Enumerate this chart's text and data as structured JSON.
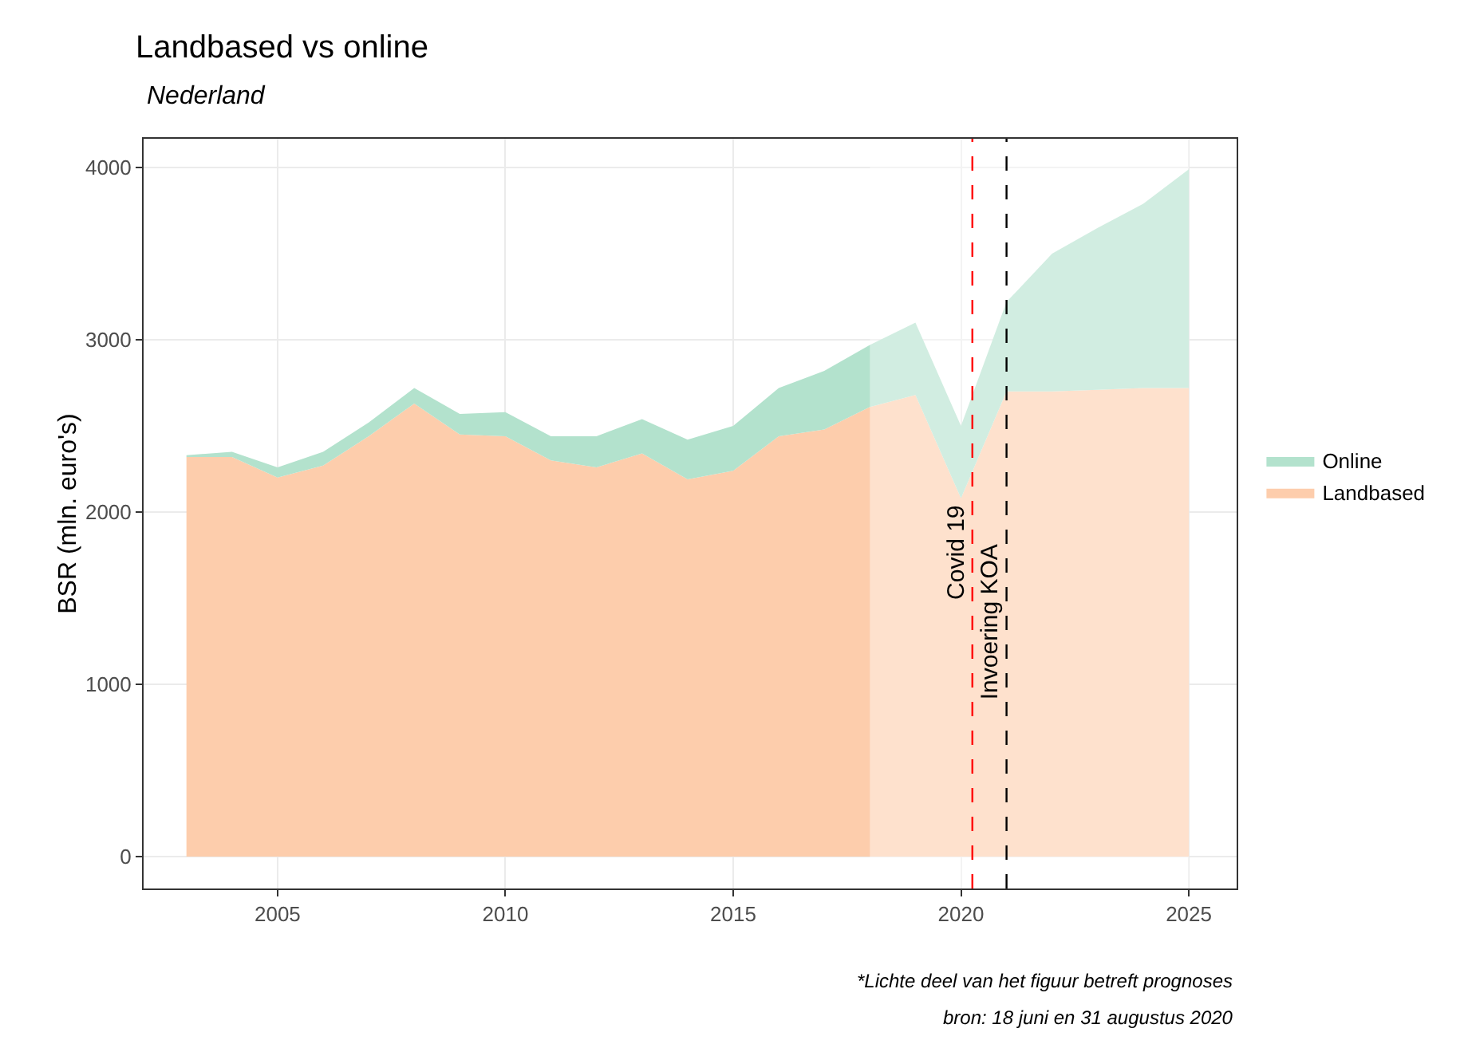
{
  "chart_data": {
    "type": "area",
    "title": "Landbased vs online",
    "subtitle": "Nederland",
    "ylabel": "BSR (mln. euro's)",
    "stacked": true,
    "grid": true,
    "legend": "right",
    "xlim": [
      2002.06,
      2026.05
    ],
    "xticks": [
      2005,
      2010,
      2015,
      2020,
      2025
    ],
    "ylim": [
      -185,
      4167
    ],
    "yticks": [
      0,
      1000,
      2000,
      3000,
      4000
    ],
    "x": [
      2003,
      2004,
      2005,
      2006,
      2007,
      2008,
      2009,
      2010,
      2011,
      2012,
      2013,
      2014,
      2015,
      2016,
      2017,
      2018,
      2019,
      2020,
      2021,
      2022,
      2023,
      2024,
      2025
    ],
    "series": [
      {
        "name": "Landbased",
        "color": "#fdcdac",
        "values": [
          2320,
          2320,
          2200,
          2270,
          2440,
          2630,
          2450,
          2440,
          2300,
          2260,
          2340,
          2190,
          2240,
          2440,
          2480,
          2610,
          2680,
          2080,
          2700,
          2700,
          2710,
          2720,
          2720
        ]
      },
      {
        "name": "Online",
        "color": "#b3e2cd",
        "values": [
          10,
          30,
          60,
          80,
          80,
          90,
          120,
          140,
          140,
          180,
          200,
          230,
          260,
          280,
          340,
          360,
          420,
          420,
          520,
          800,
          940,
          1070,
          1270
        ]
      }
    ],
    "bands": [
      {
        "axis": "x",
        "from": 2018,
        "to": 2025
      }
    ],
    "ref_lines": [
      {
        "axis": "x",
        "value": 2020.25,
        "label": "Covid 19",
        "color": "#ff0000",
        "line_style": "dashed"
      },
      {
        "axis": "x",
        "value": 2021,
        "label": "Invoering KOA",
        "color": "#000000",
        "line_style": "dashed"
      }
    ],
    "annotations": [
      "*Lichte deel van het figuur betreft prognoses",
      "bron: 18 juni en 31 augustus 2020"
    ]
  }
}
